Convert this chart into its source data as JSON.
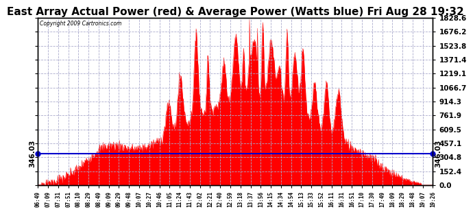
{
  "title": "East Array Actual Power (red) & Average Power (Watts blue) Fri Aug 28 19:32",
  "copyright": "Copyright 2009 Cartronics.com",
  "avg_power": 346.03,
  "ymax": 1828.6,
  "yticks": [
    0.0,
    152.4,
    304.8,
    457.1,
    609.5,
    761.9,
    914.3,
    1066.7,
    1219.1,
    1371.4,
    1523.8,
    1676.2,
    1828.6
  ],
  "xtick_labels": [
    "06:49",
    "07:09",
    "07:31",
    "07:51",
    "08:10",
    "08:29",
    "08:49",
    "09:09",
    "09:29",
    "09:48",
    "10:07",
    "10:27",
    "10:46",
    "11:05",
    "11:24",
    "11:43",
    "12:02",
    "12:21",
    "12:40",
    "12:59",
    "13:18",
    "13:37",
    "13:56",
    "14:15",
    "14:34",
    "14:54",
    "15:13",
    "15:33",
    "15:52",
    "16:11",
    "16:31",
    "16:51",
    "17:10",
    "17:30",
    "17:49",
    "18:09",
    "18:29",
    "18:48",
    "19:07",
    "19:26"
  ],
  "fill_color": "#ff0000",
  "line_color": "#0000cc",
  "bg_color": "#ffffff",
  "grid_color": "#aaaacc",
  "title_fontsize": 11,
  "avg_label_fontsize": 8
}
